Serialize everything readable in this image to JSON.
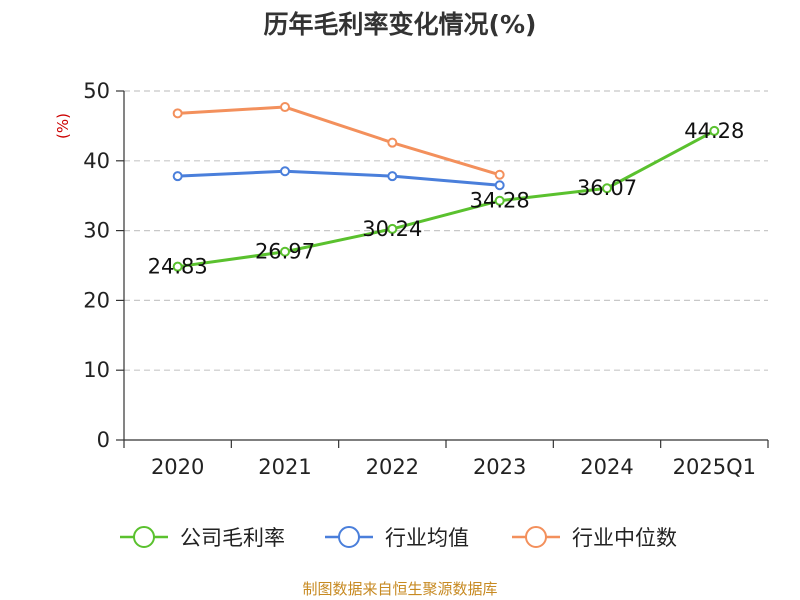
{
  "chart_data": {
    "type": "line",
    "title": "历年毛利率变化情况(%)",
    "ylabel": "(%)",
    "xlabel": "",
    "categories": [
      "2020",
      "2021",
      "2022",
      "2023",
      "2024",
      "2025Q1"
    ],
    "ylim": [
      0,
      50
    ],
    "yticks": [
      "0",
      "10",
      "20",
      "30",
      "40",
      "50"
    ],
    "grid": true,
    "legend_position": "bottom",
    "series": [
      {
        "name": "公司毛利率",
        "values": [
          24.83,
          26.97,
          30.24,
          34.28,
          36.07,
          44.28
        ],
        "labels": [
          "24.83",
          "26.97",
          "30.24",
          "34.28",
          "36.07",
          "44.28"
        ],
        "color": "#5ac12e"
      },
      {
        "name": "行业均值",
        "values": [
          37.8,
          38.5,
          37.8,
          36.5,
          null,
          null
        ],
        "color": "#4a7fdb"
      },
      {
        "name": "行业中位数",
        "values": [
          46.8,
          47.7,
          42.6,
          38.0,
          null,
          null
        ],
        "color": "#f3905c"
      }
    ],
    "source": "制图数据来自恒生聚源数据库",
    "colors": {
      "axis": "#333333",
      "grid": "#c8c8c8",
      "unit": "#cc0000",
      "source": "#c78a22"
    }
  }
}
